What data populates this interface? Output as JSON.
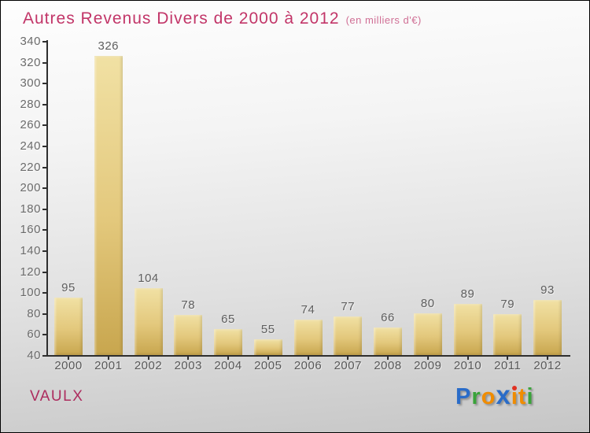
{
  "header": {
    "title": "Autres Revenus Divers de 2000 à 2012",
    "subtitle": "(en milliers d'€)"
  },
  "chart_data": {
    "type": "bar",
    "title": "Autres Revenus Divers de 2000 à 2012",
    "unit_note": "(en milliers d'€)",
    "categories": [
      "2000",
      "2001",
      "2002",
      "2003",
      "2004",
      "2005",
      "2006",
      "2007",
      "2008",
      "2009",
      "2010",
      "2011",
      "2012"
    ],
    "values": [
      95,
      326,
      104,
      78,
      65,
      55,
      74,
      77,
      66,
      80,
      89,
      79,
      93
    ],
    "ylim": [
      40,
      340
    ],
    "ytick_step": 20,
    "grid": false,
    "legend": "none",
    "bar_gradient": [
      "#f1e1a4",
      "#e3c87c",
      "#c8a64e"
    ]
  },
  "footer": {
    "entity": "VAULX",
    "logo_text": "Proxiti",
    "logo_letters": [
      {
        "char": "P",
        "color": "#2a6cc8"
      },
      {
        "char": "r",
        "color": "#3aa33a"
      },
      {
        "char": "o",
        "color": "#f08c00"
      },
      {
        "char": "x",
        "color": "#2a6cc8",
        "big": true
      },
      {
        "char": "i",
        "color": "#f08c00",
        "dot_color": "#e03222"
      },
      {
        "char": "t",
        "color": "#f08c00"
      },
      {
        "char": "i",
        "color": "#3aa33a"
      }
    ]
  },
  "colors": {
    "title": "#c23568",
    "subtitle": "#d06f95",
    "entity": "#ad2c5e",
    "axis": "#2e2e2e",
    "labels": "#5e5e5e"
  }
}
